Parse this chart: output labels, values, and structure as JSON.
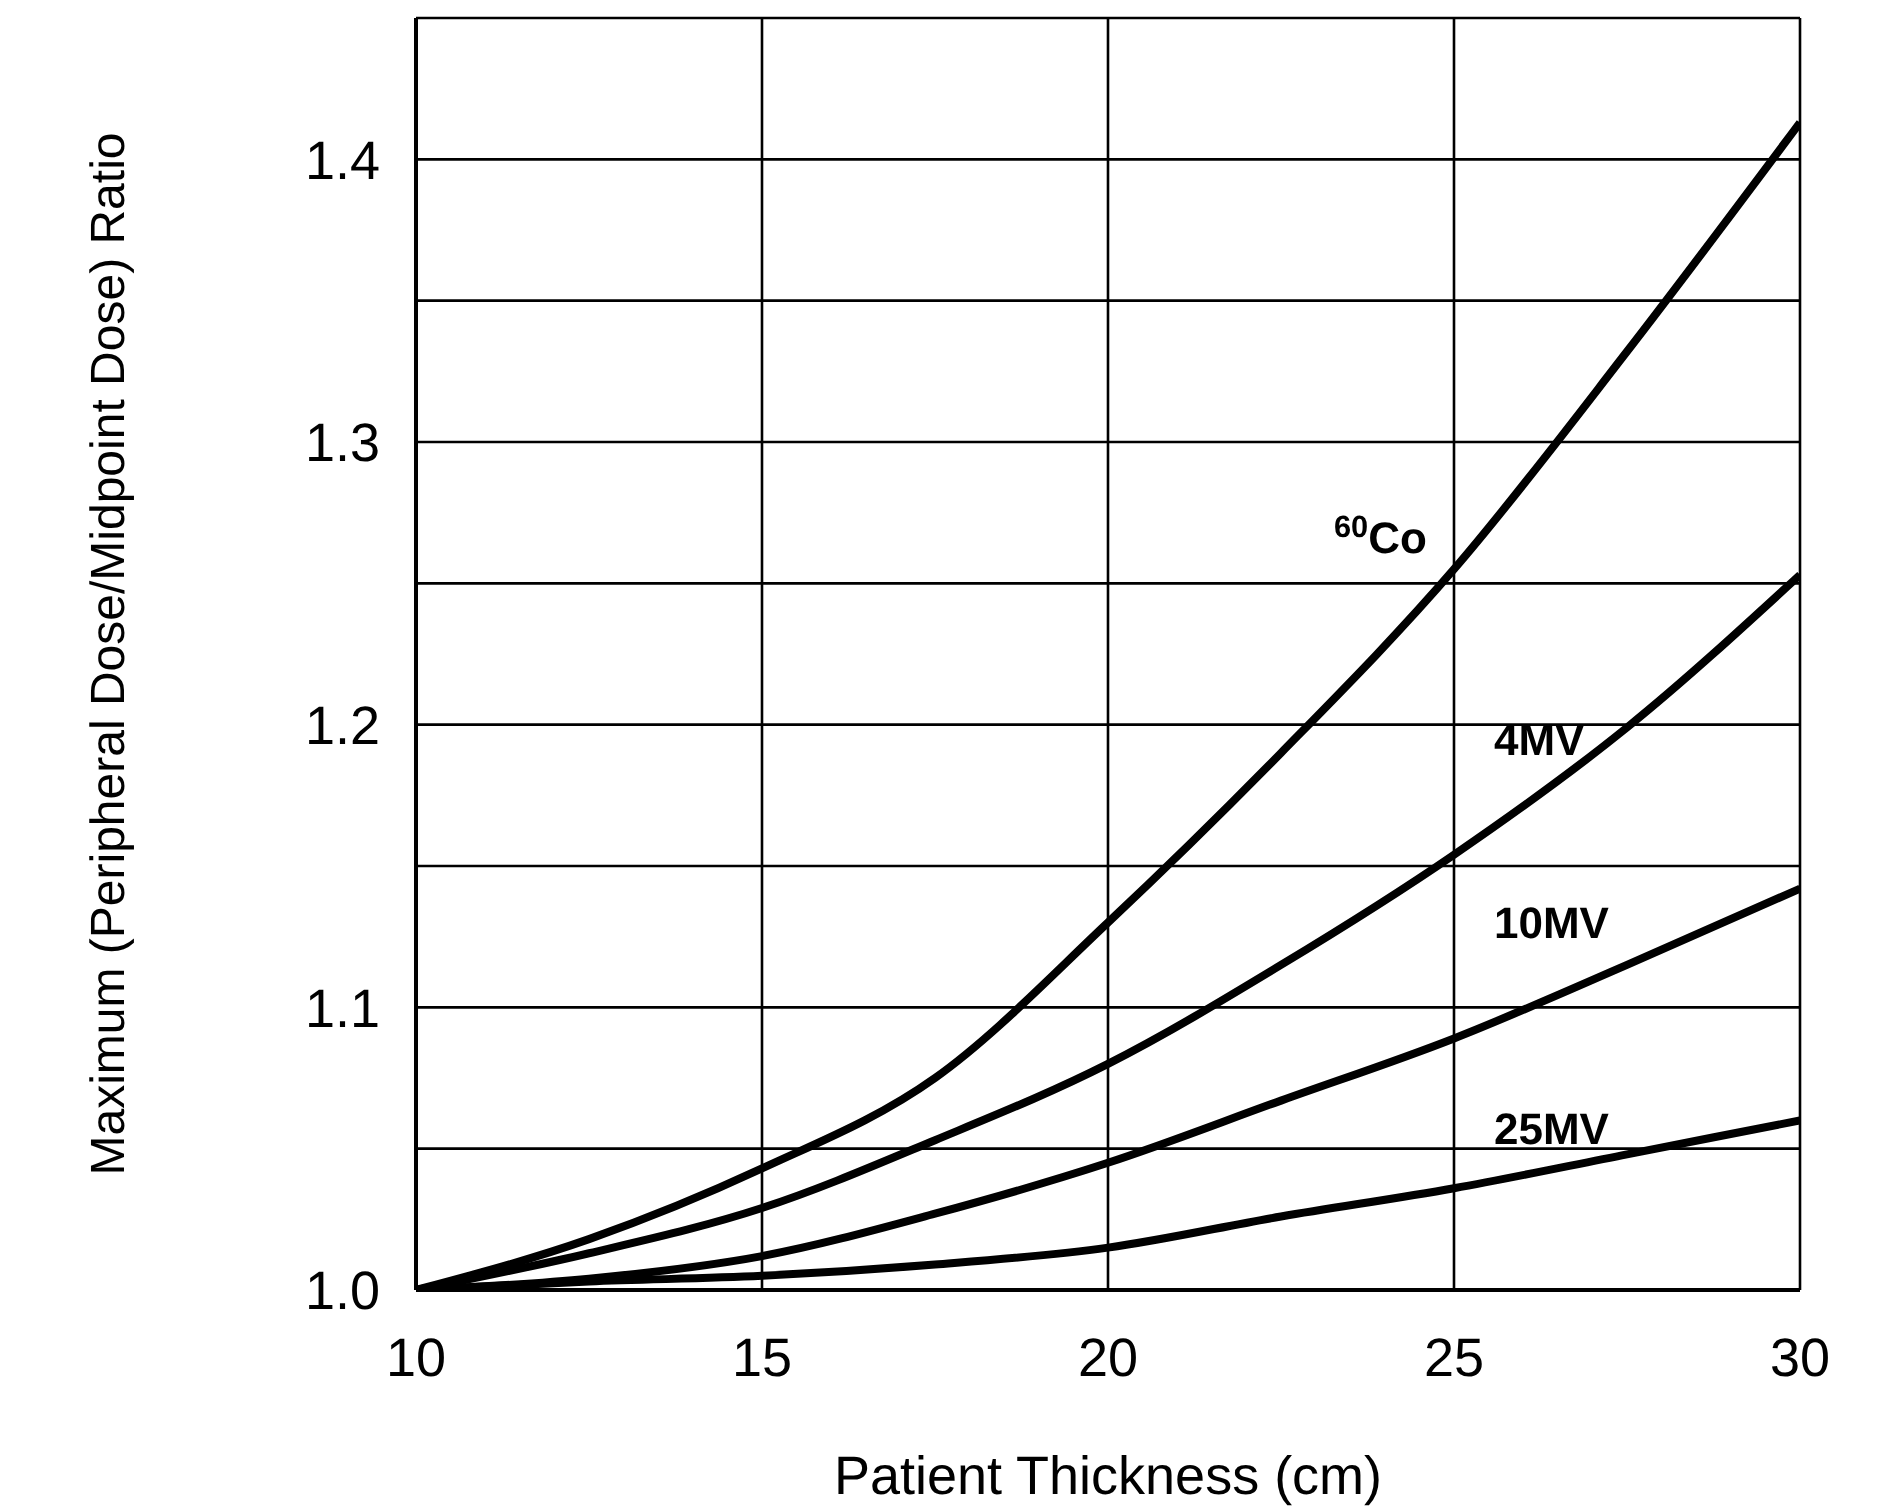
{
  "chart_data": {
    "type": "line",
    "xlabel": "Patient Thickness (cm)",
    "ylabel": "Maximum (Peripheral Dose/Midpoint Dose) Ratio",
    "x": [
      10,
      12.5,
      15,
      17.5,
      20,
      22.5,
      25,
      27.5,
      30
    ],
    "series": [
      {
        "name": "$^{60}$Co",
        "color": "#000000",
        "values": [
          1.0,
          1.018,
          1.043,
          1.075,
          1.13,
          1.19,
          1.255,
          1.332,
          1.413
        ]
      },
      {
        "name": "4MV",
        "color": "#000000",
        "values": [
          1.0,
          1.013,
          1.029,
          1.053,
          1.08,
          1.115,
          1.154,
          1.199,
          1.253
        ]
      },
      {
        "name": "10MV",
        "color": "#000000",
        "values": [
          1.0,
          1.004,
          1.012,
          1.027,
          1.045,
          1.067,
          1.089,
          1.115,
          1.142
        ]
      },
      {
        "name": "25MV",
        "color": "#000000",
        "values": [
          1.0,
          1.003,
          1.005,
          1.009,
          1.015,
          1.026,
          1.036,
          1.048,
          1.06
        ]
      }
    ],
    "xlim": [
      10,
      30
    ],
    "xticks": [
      10,
      15,
      20,
      25,
      30
    ],
    "ylim": [
      1.0,
      1.45
    ],
    "yticks": [
      {
        "value": 1.0,
        "label": "1.0"
      },
      {
        "value": 1.05,
        "label": null
      },
      1.1,
      {
        "value": 1.15,
        "label": null
      },
      1.2,
      {
        "value": 1.25,
        "label": null
      },
      1.3,
      {
        "value": 1.35,
        "label": null
      },
      1.4,
      {
        "value": 1.45,
        "label": null
      }
    ],
    "grid": true,
    "marker": "none",
    "line_style": "solid"
  }
}
